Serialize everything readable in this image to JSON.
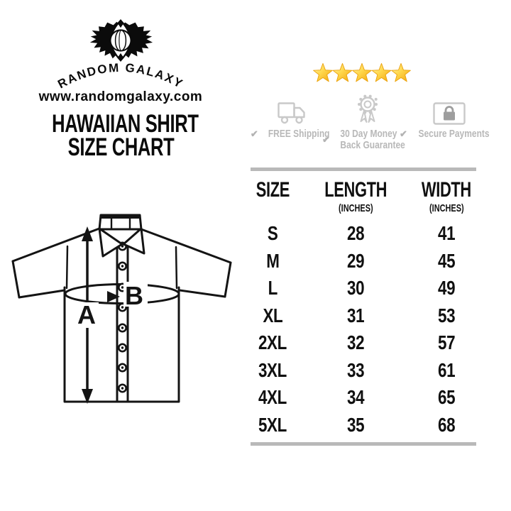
{
  "brand": {
    "name": "RANDOM GALAXY",
    "website": "www.randomgalaxy.com"
  },
  "title": {
    "line1": "HAWAIIAN SHIRT",
    "line2": "SIZE CHART"
  },
  "rating": {
    "count": 5
  },
  "badges": {
    "check": "✔",
    "shipping": {
      "label": "FREE Shipping"
    },
    "guarantee": {
      "line1": "30 Day Money",
      "line2": "Back Guarantee"
    },
    "payments": {
      "label": "Secure Payments"
    }
  },
  "diagram": {
    "length_label": "A",
    "width_label": "B"
  },
  "table": {
    "header": {
      "size": "SIZE",
      "length": "LENGTH",
      "width": "WIDTH",
      "unit": "(INCHES)"
    }
  },
  "chart_data": {
    "type": "table",
    "title": "HAWAIIAN SHIRT SIZE CHART",
    "columns": [
      "SIZE",
      "LENGTH (INCHES)",
      "WIDTH (INCHES)"
    ],
    "rows": [
      {
        "size": "S",
        "length_in": 28,
        "width_in": 41
      },
      {
        "size": "M",
        "length_in": 29,
        "width_in": 45
      },
      {
        "size": "L",
        "length_in": 30,
        "width_in": 49
      },
      {
        "size": "XL",
        "length_in": 31,
        "width_in": 53
      },
      {
        "size": "2XL",
        "length_in": 32,
        "width_in": 57
      },
      {
        "size": "3XL",
        "length_in": 33,
        "width_in": 61
      },
      {
        "size": "4XL",
        "length_in": 34,
        "width_in": 65
      },
      {
        "size": "5XL",
        "length_in": 35,
        "width_in": 68
      }
    ]
  },
  "colors": {
    "ink": "#101010",
    "star_gold": "#F6B40E",
    "star_light": "#FFEE8F",
    "badge_gray": "#C9C9C9",
    "badge_text_gray": "#B8B8B8",
    "rule_gray": "#B9B9B9"
  }
}
